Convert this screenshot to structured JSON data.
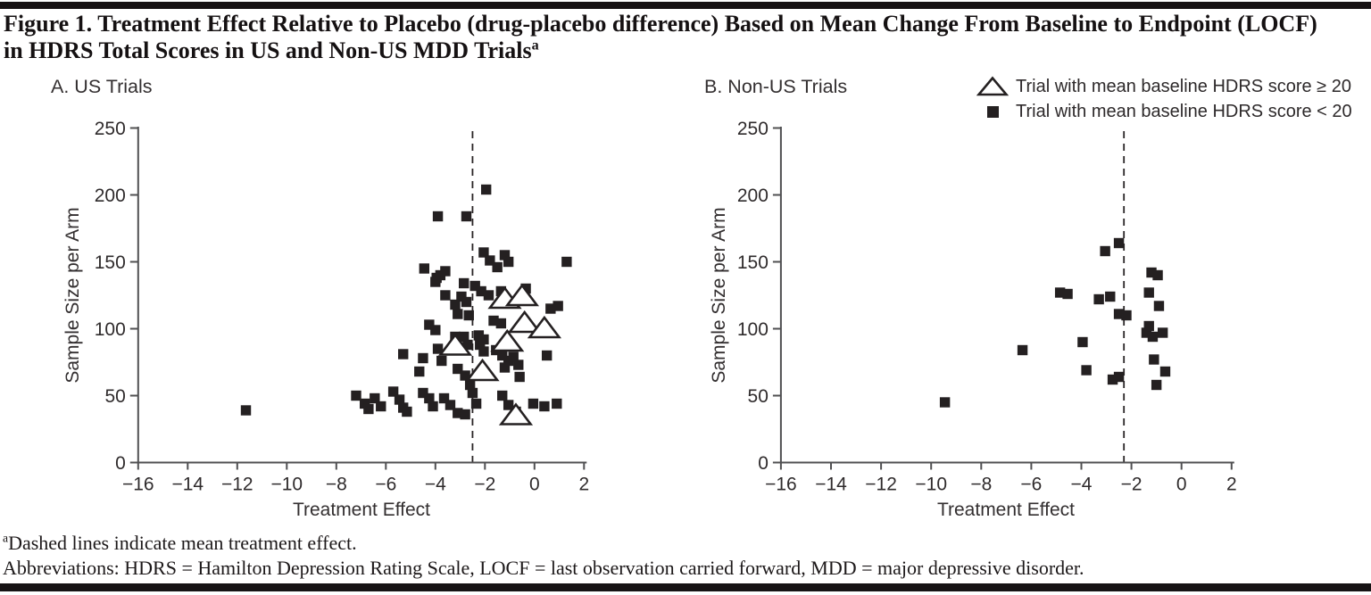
{
  "figure": {
    "title_line1": "Figure 1. Treatment Effect Relative to Placebo (drug-placebo difference) Based on Mean Change From Baseline to Endpoint (LOCF)",
    "title_line2": "in HDRS Total Scores in US and Non-US MDD Trials",
    "title_superscript": "a",
    "footnotes": {
      "superscript": "a",
      "line1": "Dashed lines indicate mean treatment effect.",
      "line2": "Abbreviations: HDRS = Hamilton Depression Rating Scale, LOCF = last observation carried forward, MDD = major depressive disorder."
    }
  },
  "legend": {
    "items": [
      {
        "symbol": "triangle-open",
        "label": "Trial with mean baseline HDRS score ≥ 20"
      },
      {
        "symbol": "square-filled",
        "label": "Trial with mean baseline HDRS score < 20"
      }
    ]
  },
  "colors": {
    "ink": "#231f20",
    "axis": "#505052",
    "background": "#ffffff"
  },
  "chart_data": [
    {
      "type": "scatter",
      "panel_label": "A. US Trials",
      "xlabel": "Treatment Effect",
      "ylabel": "Sample Size per Arm",
      "xlim": [
        -16,
        2
      ],
      "ylim": [
        0,
        250
      ],
      "xticks": [
        -16,
        -14,
        -12,
        -10,
        -8,
        -6,
        -4,
        -2,
        0,
        2
      ],
      "yticks": [
        0,
        50,
        100,
        150,
        200,
        250
      ],
      "dashed_mean_treatment_effect": -2.5,
      "series": [
        {
          "name": "Trial with mean baseline HDRS score < 20",
          "marker": "square-filled",
          "points": [
            [
              -11.65,
              39
            ],
            [
              -7.2,
              50
            ],
            [
              -6.85,
              44
            ],
            [
              -6.7,
              40
            ],
            [
              -6.45,
              48
            ],
            [
              -6.2,
              42
            ],
            [
              -5.7,
              53
            ],
            [
              -5.45,
              47
            ],
            [
              -5.3,
              41
            ],
            [
              -5.15,
              38
            ],
            [
              -4.5,
              52
            ],
            [
              -4.25,
              48
            ],
            [
              -4.1,
              42
            ],
            [
              -3.65,
              48
            ],
            [
              -3.4,
              43
            ],
            [
              -3.1,
              37
            ],
            [
              -2.8,
              36
            ],
            [
              -2.5,
              52
            ],
            [
              -2.35,
              44
            ],
            [
              -1.3,
              50
            ],
            [
              -1.05,
              43
            ],
            [
              -0.75,
              38
            ],
            [
              -0.05,
              44
            ],
            [
              0.4,
              42
            ],
            [
              0.9,
              44
            ],
            [
              -4.65,
              68
            ],
            [
              -4.5,
              78
            ],
            [
              -3.75,
              76
            ],
            [
              -3.1,
              70
            ],
            [
              -2.8,
              65
            ],
            [
              -2.6,
              58
            ],
            [
              -1.2,
              71
            ],
            [
              -1.05,
              76
            ],
            [
              -0.65,
              73
            ],
            [
              -0.6,
              64
            ],
            [
              -5.3,
              81
            ],
            [
              -3.9,
              85
            ],
            [
              -3.2,
              94
            ],
            [
              -2.85,
              94
            ],
            [
              -2.7,
              88
            ],
            [
              -2.25,
              95
            ],
            [
              -2.2,
              88
            ],
            [
              -2.05,
              92
            ],
            [
              -2.05,
              83
            ],
            [
              -1.55,
              84
            ],
            [
              -1.3,
              80
            ],
            [
              -0.85,
              79
            ],
            [
              0.5,
              80
            ],
            [
              -4.25,
              103
            ],
            [
              -4.0,
              99
            ],
            [
              -1.65,
              106
            ],
            [
              -1.35,
              104
            ],
            [
              -4.0,
              135
            ],
            [
              -3.6,
              125
            ],
            [
              -3.2,
              118
            ],
            [
              -2.95,
              124
            ],
            [
              -2.75,
              120
            ],
            [
              -3.1,
              111
            ],
            [
              -2.65,
              110
            ],
            [
              -2.4,
              132
            ],
            [
              -2.15,
              128
            ],
            [
              -1.85,
              125
            ],
            [
              -1.35,
              128
            ],
            [
              -0.35,
              130
            ],
            [
              -2.85,
              134
            ],
            [
              0.65,
              115
            ],
            [
              0.95,
              117
            ],
            [
              -4.45,
              145
            ],
            [
              -3.95,
              138
            ],
            [
              -3.8,
              140
            ],
            [
              -3.6,
              143
            ],
            [
              -2.05,
              157
            ],
            [
              -1.8,
              151
            ],
            [
              -1.5,
              146
            ],
            [
              -1.2,
              155
            ],
            [
              -1.05,
              150
            ],
            [
              1.3,
              150
            ],
            [
              -3.9,
              184
            ],
            [
              -2.75,
              184
            ],
            [
              -1.95,
              204
            ]
          ]
        },
        {
          "name": "Trial with mean baseline HDRS score ≥ 20",
          "marker": "triangle-open",
          "points": [
            [
              -3.2,
              87
            ],
            [
              -2.1,
              68
            ],
            [
              -1.2,
              122
            ],
            [
              -1.1,
              90
            ],
            [
              -0.75,
              35
            ],
            [
              -0.5,
              124
            ],
            [
              -0.4,
              104
            ],
            [
              0.4,
              100
            ]
          ]
        }
      ]
    },
    {
      "type": "scatter",
      "panel_label": "B. Non-US Trials",
      "xlabel": "Treatment Effect",
      "ylabel": "Sample Size per Arm",
      "xlim": [
        -16,
        2
      ],
      "ylim": [
        0,
        250
      ],
      "xticks": [
        -16,
        -14,
        -12,
        -10,
        -8,
        -6,
        -4,
        -2,
        0,
        2
      ],
      "yticks": [
        0,
        50,
        100,
        150,
        200,
        250
      ],
      "dashed_mean_treatment_effect": -2.3,
      "series": [
        {
          "name": "Trial with mean baseline HDRS score < 20",
          "marker": "square-filled",
          "points": [
            [
              -9.45,
              45
            ],
            [
              -6.35,
              84
            ],
            [
              -4.85,
              127
            ],
            [
              -4.55,
              126
            ],
            [
              -3.95,
              90
            ],
            [
              -3.8,
              69
            ],
            [
              -3.3,
              122
            ],
            [
              -3.05,
              158
            ],
            [
              -2.85,
              124
            ],
            [
              -2.75,
              62
            ],
            [
              -2.5,
              164
            ],
            [
              -2.5,
              111
            ],
            [
              -2.5,
              64
            ],
            [
              -2.2,
              110
            ],
            [
              -1.4,
              97
            ],
            [
              -1.3,
              127
            ],
            [
              -1.3,
              102
            ],
            [
              -1.2,
              142
            ],
            [
              -1.15,
              94
            ],
            [
              -1.1,
              77
            ],
            [
              -1.0,
              58
            ],
            [
              -0.95,
              140
            ],
            [
              -0.9,
              117
            ],
            [
              -0.75,
              97
            ],
            [
              -0.65,
              68
            ]
          ]
        }
      ]
    }
  ]
}
